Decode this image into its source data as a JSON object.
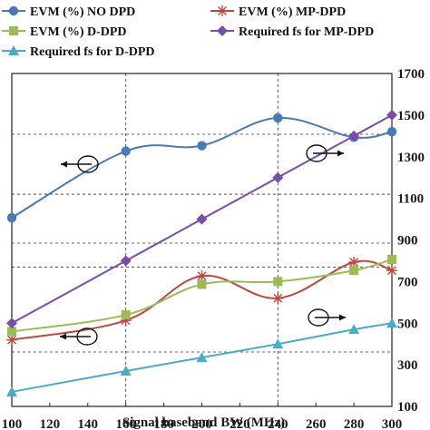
{
  "chart_data": {
    "type": "line",
    "title": "",
    "xlabel": "Signal baseband BW (MHz)",
    "ylabel_left": "",
    "ylabel_right": "",
    "x": [
      100,
      160,
      200,
      240,
      280,
      300
    ],
    "xlim": [
      100,
      300
    ],
    "xticks": [
      "100",
      "120",
      "140",
      "160",
      "180",
      "200",
      "220",
      "240",
      "260",
      "280",
      "300"
    ],
    "right_axis": {
      "ylim": [
        100,
        1700
      ],
      "ticks": [
        "100",
        "300",
        "500",
        "700",
        "900",
        "1100",
        "1300",
        "1500",
        "1700"
      ]
    },
    "grid": "dashed",
    "legend_position": "top",
    "series": [
      {
        "name": "EVM  (%) NO DPD",
        "axis": "left",
        "marker": "circle",
        "color": "#4a7ab5",
        "values": [
          3.4,
          4.6,
          4.7,
          5.2,
          4.85,
          4.95
        ]
      },
      {
        "name": "EVM (%) MP-DPD",
        "axis": "left",
        "marker": "asterisk",
        "color": "#b94a42",
        "values": [
          1.2,
          1.55,
          2.35,
          1.95,
          2.6,
          2.45
        ]
      },
      {
        "name": "EVM (%) D-DPD",
        "axis": "left",
        "marker": "square",
        "color": "#9bbb59",
        "values": [
          1.35,
          1.65,
          2.2,
          2.25,
          2.45,
          2.65
        ]
      },
      {
        "name": "Required fs for MP-DPD",
        "axis": "right",
        "marker": "diamond",
        "color": "#7a4ea8",
        "values": [
          500,
          800,
          1000,
          1200,
          1400,
          1500
        ]
      },
      {
        "name": "Required fs for D-DPD",
        "axis": "right",
        "marker": "triangle",
        "color": "#4bacc6",
        "values": [
          170,
          270,
          335,
          400,
          470,
          500
        ]
      }
    ]
  }
}
